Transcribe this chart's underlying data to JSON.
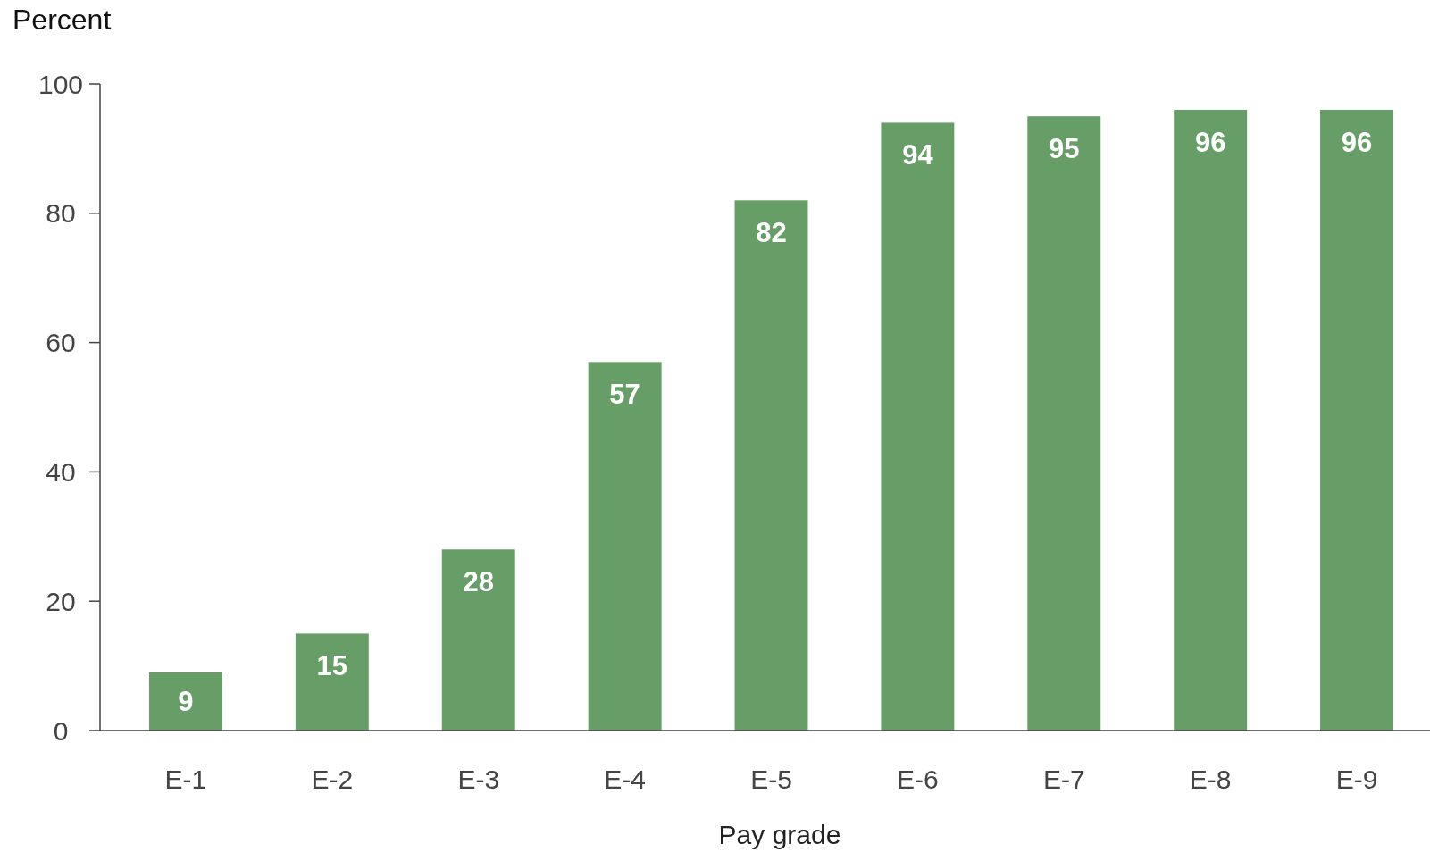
{
  "chart_data": {
    "type": "bar",
    "ylabel": "Percent",
    "xlabel": "Pay grade",
    "categories": [
      "E-1",
      "E-2",
      "E-3",
      "E-4",
      "E-5",
      "E-6",
      "E-7",
      "E-8",
      "E-9"
    ],
    "values": [
      9,
      15,
      28,
      57,
      82,
      94,
      95,
      96,
      96
    ],
    "color": "#679e67",
    "ylim": [
      0,
      100
    ],
    "yticks": [
      0,
      20,
      40,
      60,
      80,
      100
    ],
    "grid": false,
    "data_labels": true
  }
}
